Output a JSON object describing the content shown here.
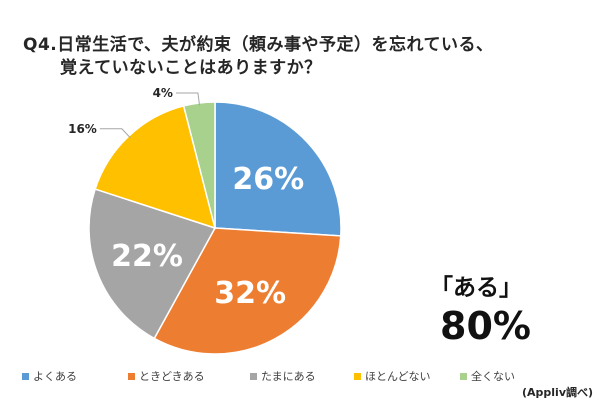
{
  "title": {
    "line1": "Q4.日常生活で、夫が約束（頼み事や予定）を忘れている、",
    "line2": "覚えていないことはありますか？"
  },
  "chart_data": {
    "type": "pie",
    "categories": [
      "よくある",
      "ときどきある",
      "たまにある",
      "ほとんどない",
      "全くない"
    ],
    "values": [
      26,
      32,
      22,
      16,
      4
    ],
    "value_labels": [
      "26%",
      "32%",
      "22%",
      "16%",
      "4%"
    ],
    "colors": [
      "#5b9bd5",
      "#ed7d31",
      "#a5a5a5",
      "#ffc000",
      "#a9d18e"
    ],
    "label_colors": [
      "#ffffff",
      "#ffffff",
      "#ffffff",
      "#262626",
      "#262626"
    ],
    "legend_position": "bottom"
  },
  "callout": {
    "label": "「ある」",
    "value": "80%"
  },
  "source": "(Appliv調べ)"
}
